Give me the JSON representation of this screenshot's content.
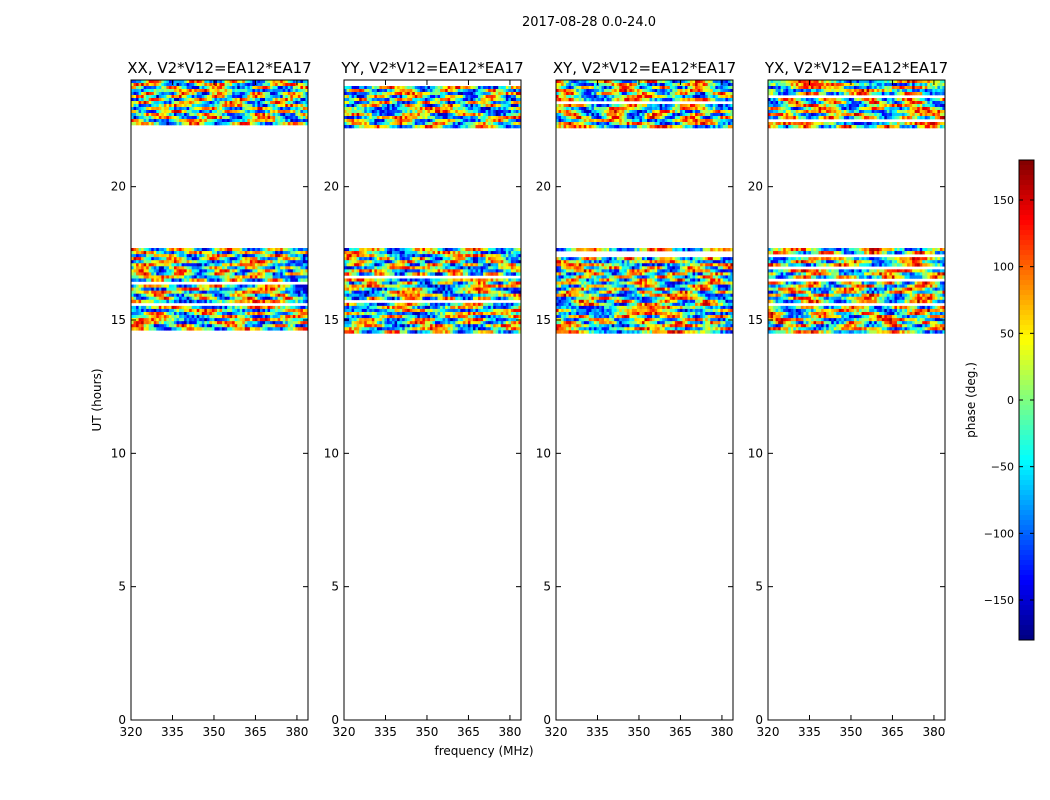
{
  "suptitle": "2017-08-28 0.0-24.0",
  "chart_data": {
    "type": "heatmap",
    "ylabel": "UT (hours)",
    "xlabel": "frequency (MHz)",
    "xlim": [
      320,
      384
    ],
    "ylim": [
      0,
      24
    ],
    "xticks": [
      320,
      335,
      350,
      365,
      380
    ],
    "yticks": [
      0,
      5,
      10,
      15,
      20
    ],
    "panels": [
      {
        "title": "XX, V2*V12=EA12*EA17"
      },
      {
        "title": "YY, V2*V12=EA12*EA17"
      },
      {
        "title": "XY, V2*V12=EA12*EA17"
      },
      {
        "title": "YX, V2*V12=EA12*EA17"
      }
    ],
    "data_ut_ranges": [
      [
        14.5,
        17.7
      ],
      [
        22.2,
        24.0
      ]
    ],
    "colorbar": {
      "label": "phase (deg.)",
      "range": [
        -180,
        180
      ],
      "ticks": [
        150,
        100,
        50,
        0,
        -50,
        -100,
        -150
      ],
      "colormap": "jet"
    }
  }
}
